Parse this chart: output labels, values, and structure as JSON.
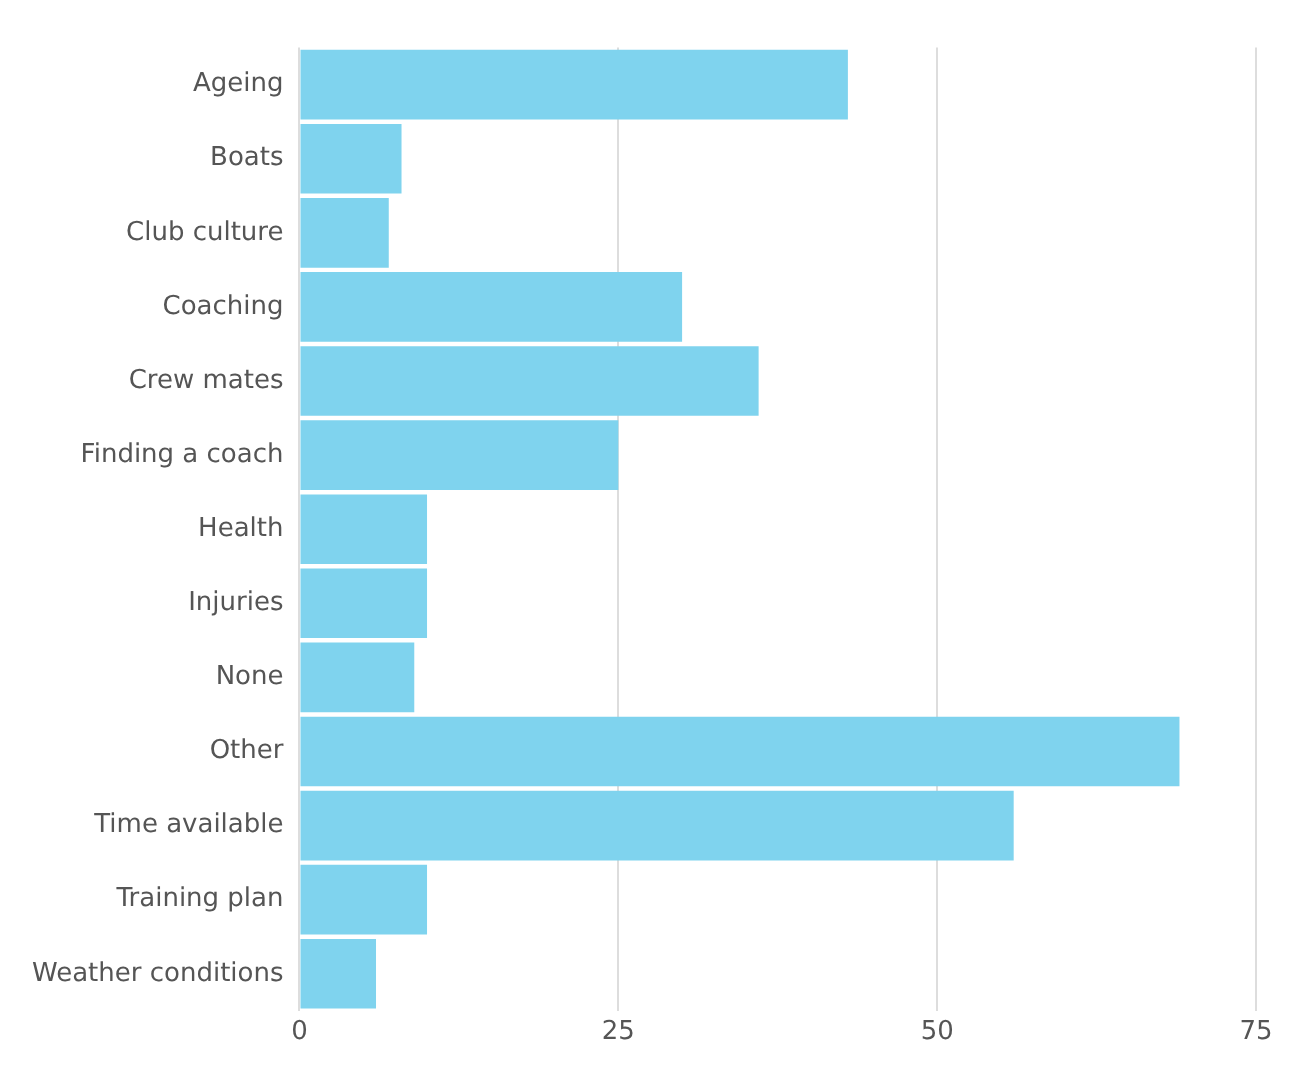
{
  "chart_data": {
    "type": "bar",
    "orientation": "horizontal",
    "categories": [
      "Ageing",
      "Boats",
      "Club culture",
      "Coaching",
      "Crew mates",
      "Finding a coach",
      "Health",
      "Injuries",
      "None",
      "Other",
      "Time available",
      "Training plan",
      "Weather conditions"
    ],
    "values": [
      43,
      8,
      7,
      30,
      36,
      25,
      10,
      10,
      9,
      69,
      56,
      10,
      6
    ],
    "color": "#7fd3ee",
    "xlim": [
      0,
      75
    ],
    "xticks": [
      0,
      25,
      50,
      75
    ],
    "grid": "x",
    "legend": false
  }
}
